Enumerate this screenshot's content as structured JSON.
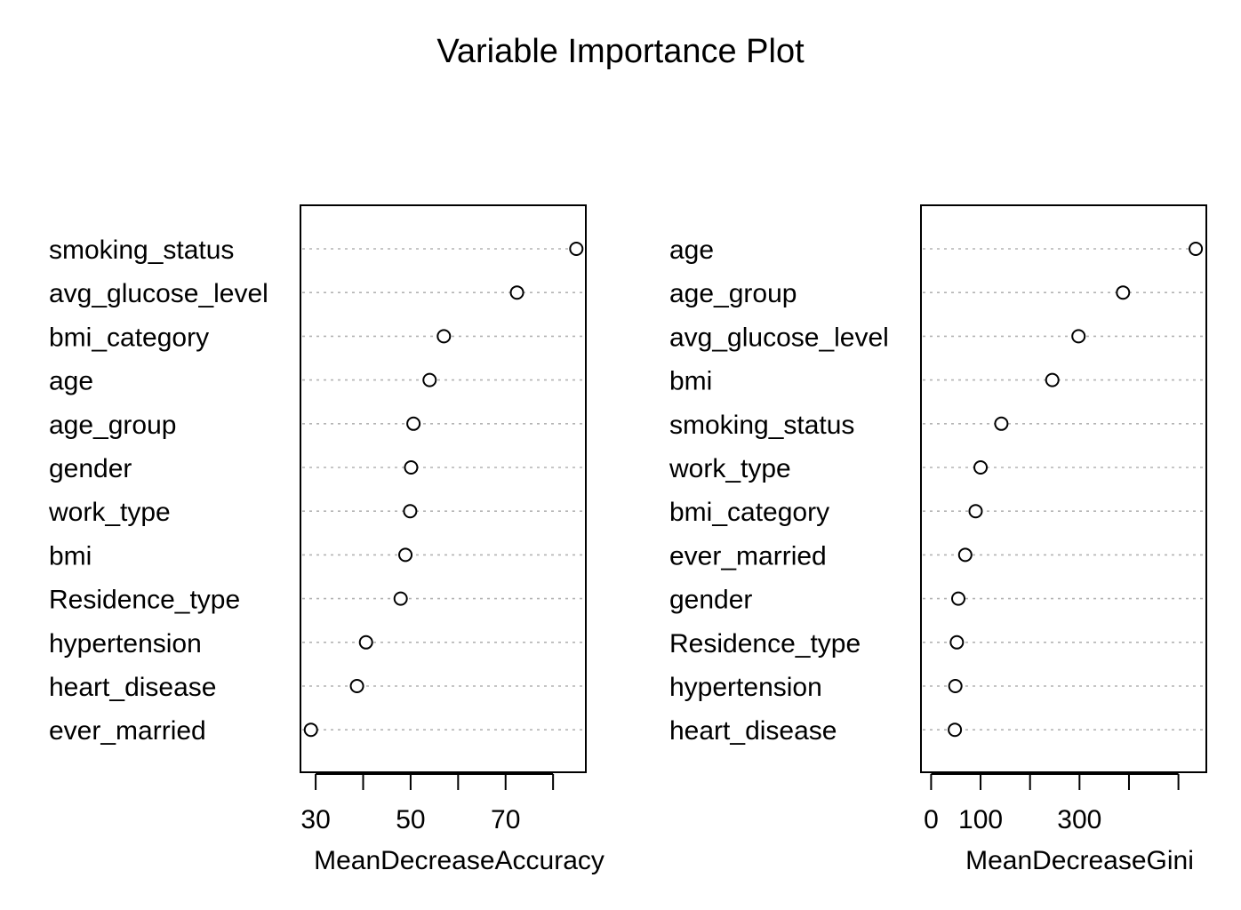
{
  "title": "Variable Importance Plot",
  "chart_data": [
    {
      "type": "scatter",
      "title": "",
      "xlabel": "MeanDecreaseAccuracy",
      "ylabel": "",
      "xlim": [
        26.8,
        86.9
      ],
      "ticks": [
        30,
        40,
        50,
        60,
        70,
        80
      ],
      "tick_labels": [
        "30",
        "",
        "50",
        "",
        "70",
        ""
      ],
      "grid": false,
      "categories": [
        "smoking_status",
        "avg_glucose_level",
        "bmi_category",
        "age",
        "age_group",
        "gender",
        "work_type",
        "bmi",
        "Residence_type",
        "hypertension",
        "heart_disease",
        "ever_married"
      ],
      "values": [
        84.9,
        72.4,
        57.0,
        54.0,
        50.6,
        50.1,
        49.9,
        48.9,
        47.9,
        40.6,
        38.7,
        29.0
      ]
    },
    {
      "type": "scatter",
      "title": "",
      "xlabel": "MeanDecreaseGini",
      "ylabel": "",
      "xlim": [
        -20.5,
        556.4
      ],
      "ticks": [
        0,
        100,
        200,
        300,
        400,
        500
      ],
      "tick_labels": [
        "0",
        "100",
        "",
        "300",
        "",
        ""
      ],
      "grid": false,
      "categories": [
        "age",
        "age_group",
        "avg_glucose_level",
        "bmi",
        "smoking_status",
        "work_type",
        "bmi_category",
        "ever_married",
        "gender",
        "Residence_type",
        "hypertension",
        "heart_disease"
      ],
      "values": [
        535,
        388,
        298,
        245,
        142,
        100,
        90,
        69,
        55,
        52,
        49,
        48
      ]
    }
  ]
}
